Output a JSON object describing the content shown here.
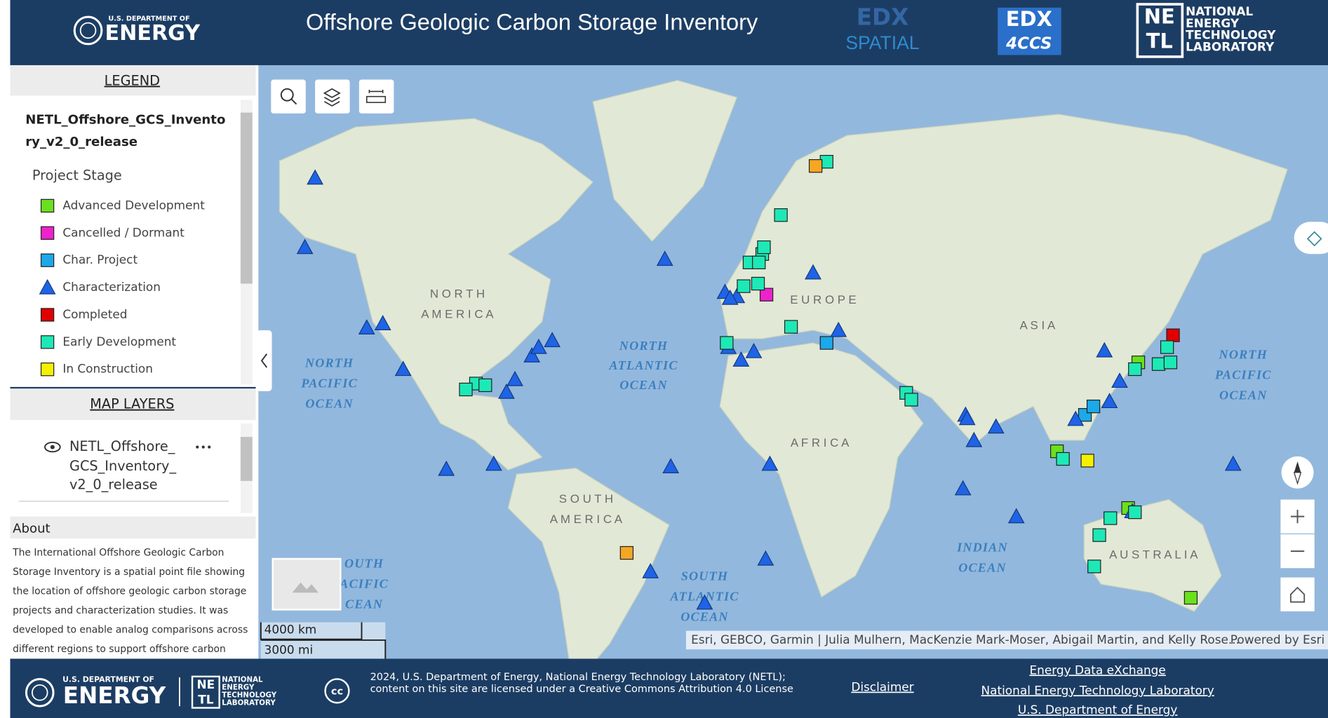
{
  "header": {
    "doe_small": "U.S. DEPARTMENT OF",
    "doe_big": "ENERGY",
    "title": "Offshore Geologic Carbon Storage Inventory",
    "edx_spatial": [
      "EDX",
      "SPATIAL"
    ],
    "edx_4ccs": [
      "EDX",
      "4CCS"
    ],
    "netl_mark": [
      "NE",
      "TL"
    ],
    "netl_name": [
      "NATIONAL",
      "ENERGY",
      "TECHNOLOGY",
      "LABORATORY"
    ]
  },
  "legend": {
    "title": "LEGEND",
    "layer_lines": [
      "NETL_Offshore_GCS_Invento",
      "ry_v2_0_release"
    ],
    "field": "Project Stage",
    "items": [
      {
        "label": "Advanced Development",
        "shape": "square",
        "color": "#6ae01e"
      },
      {
        "label": "Cancelled / Dormant",
        "shape": "square",
        "color": "#ee22cc"
      },
      {
        "label": "Char. Project",
        "shape": "square",
        "color": "#1ba9ea"
      },
      {
        "label": "Characterization",
        "shape": "triangle",
        "color": "#1f63e6"
      },
      {
        "label": "Completed",
        "shape": "square",
        "color": "#e00000"
      },
      {
        "label": "Early Development",
        "shape": "square",
        "color": "#1de9b6"
      },
      {
        "label": "In Construction",
        "shape": "square",
        "color": "#f5f000"
      }
    ]
  },
  "map_layers": {
    "title": "MAP LAYERS",
    "layer_lines": [
      "NETL_Offshore_",
      "GCS_Inventory_",
      "v2_0_release"
    ]
  },
  "about": {
    "title": "About",
    "lines": [
      "The International Offshore Geologic Carbon",
      "Storage Inventory is a spatial point file showing",
      "the location of offshore geologic carbon storage",
      "projects and characterization studies. It was",
      "developed to enable analog comparisons across",
      "different regions to support offshore carbon"
    ]
  },
  "map": {
    "labels": [
      {
        "lines": [
          "N O R T H",
          "A M E R I C A"
        ],
        "kind": "land"
      },
      {
        "lines": [
          "E U R O P E"
        ],
        "kind": "land"
      },
      {
        "lines": [
          "A S I A"
        ],
        "kind": "land"
      },
      {
        "lines": [
          "A F R I C A"
        ],
        "kind": "land"
      },
      {
        "lines": [
          "S O U T H",
          "A M E R I C A"
        ],
        "kind": "land"
      },
      {
        "lines": [
          "A U S T R A L I A"
        ],
        "kind": "land"
      },
      {
        "lines": [
          "NORTH",
          "PACIFIC",
          "OCEAN"
        ],
        "kind": "ocean"
      },
      {
        "lines": [
          "NORTH",
          "ATLANTIC",
          "OCEAN"
        ],
        "kind": "ocean"
      },
      {
        "lines": [
          "NORTH",
          "PACIFIC",
          "OCEAN"
        ],
        "kind": "ocean"
      },
      {
        "lines": [
          "INDIAN",
          "OCEAN"
        ],
        "kind": "ocean"
      },
      {
        "lines": [
          "SOUTH",
          "ATLANTIC",
          "OCEAN"
        ],
        "kind": "ocean"
      },
      {
        "lines": [
          "OUTH",
          "ACIFIC",
          "CEAN"
        ],
        "kind": "ocean"
      }
    ],
    "scale": [
      "4000 km",
      "3000 mi"
    ],
    "attribution": "Esri, GEBCO, Garmin | Julia Mulhern, MacKenzie Mark-Moser, Abigail Martin, and Kelly Rose...",
    "powered": "Powered by Esri"
  },
  "footer": {
    "doe_small": "U.S. DEPARTMENT OF",
    "doe_big": "ENERGY",
    "netl_mark": [
      "NE",
      "TL"
    ],
    "netl_name": [
      "NATIONAL",
      "ENERGY",
      "TECHNOLOGY",
      "LABORATORY"
    ],
    "cc": "cc",
    "license_lines": [
      "2024, U.S. Department of Energy, National Energy Technology Laboratory (NETL);",
      "content on this site are licensed under a Creative Commons Attribution 4.0 License"
    ],
    "disclaimer": "Disclaimer",
    "links": [
      "Energy Data eXchange",
      "National Energy Technology Laboratory",
      "U.S. Department of Energy"
    ]
  }
}
